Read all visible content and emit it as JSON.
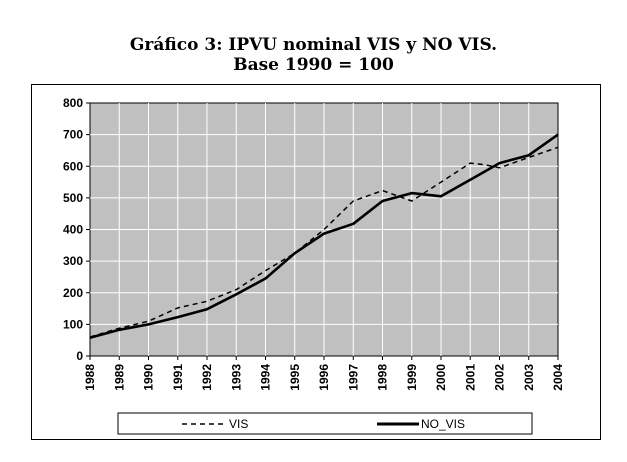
{
  "chart_data": {
    "type": "line",
    "title": "Gráfico 3: IPVU nominal VIS  y NO VIS.",
    "subtitle": "Base 1990 = 100",
    "xlabel": "",
    "ylabel": "",
    "categories": [
      "1988",
      "1989",
      "1990",
      "1991",
      "1992",
      "1993",
      "1994",
      "1995",
      "1996",
      "1997",
      "1998",
      "1999",
      "2000",
      "2001",
      "2002",
      "2003",
      "2004"
    ],
    "x_tick_labels": [
      "1988",
      "1989",
      "1990",
      "1991",
      "1992",
      "1993",
      "1994",
      "1995",
      "1996",
      "1997",
      "1998",
      "1999",
      "2000",
      "2001",
      "2002",
      "2003",
      "2004"
    ],
    "y_tick_labels": [
      "0",
      "100",
      "200",
      "300",
      "400",
      "500",
      "600",
      "700",
      "800"
    ],
    "ylim": [
      0,
      800
    ],
    "grid": true,
    "legend_position": "bottom",
    "series": [
      {
        "name": "VIS",
        "style": "dashed",
        "color": "#000000",
        "x": [
          1988,
          1989,
          1990,
          1991,
          1992,
          1993,
          1994,
          1995,
          1996,
          1997,
          1998,
          1999,
          2000,
          2001,
          2001.5,
          2002,
          2003,
          2004
        ],
        "values": [
          60,
          88,
          110,
          152,
          173,
          210,
          270,
          325,
          400,
          490,
          523,
          490,
          550,
          610,
          605,
          595,
          628,
          660
        ]
      },
      {
        "name": "NO_VIS",
        "style": "solid",
        "color": "#000000",
        "x": [
          1988,
          1989,
          1990,
          1991,
          1992,
          1993,
          1994,
          1995,
          1996,
          1997,
          1998,
          1999,
          2000,
          2001,
          2002,
          2003,
          2004
        ],
        "values": [
          58,
          83,
          100,
          123,
          148,
          195,
          245,
          325,
          387,
          418,
          490,
          515,
          505,
          557,
          610,
          635,
          700
        ]
      }
    ]
  }
}
